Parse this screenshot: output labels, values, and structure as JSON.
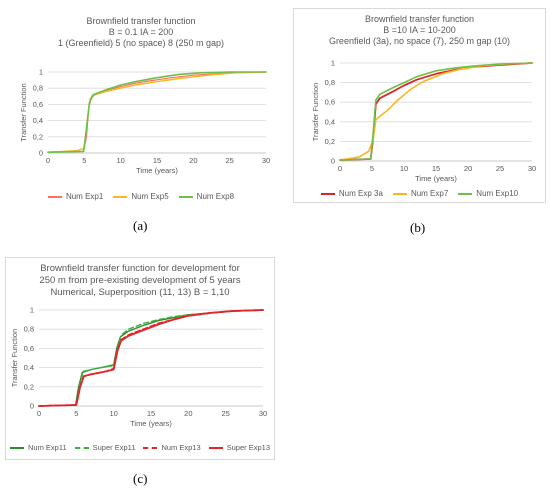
{
  "chart_data": [
    {
      "type": "line",
      "title": [
        "Brownfield transfer function",
        "B = 0.1 IA = 200",
        "1 (Greenfield) 5 (no space) 8 (250 m gap)"
      ],
      "xlabel": "Time (years)",
      "ylabel": "Transfer Function",
      "xlim": [
        0,
        30
      ],
      "ylim": [
        0,
        1
      ],
      "xticks": [
        0,
        5,
        10,
        15,
        20,
        25,
        30
      ],
      "yticks": [
        0,
        0.2,
        0.4,
        0.6,
        0.8,
        1
      ],
      "ytick_labels": [
        "0",
        "0,2",
        "0,4",
        "0,6",
        "0,8",
        "1"
      ],
      "grid": "horizontal",
      "legend_position": "bottom",
      "caption": "(a)",
      "series": [
        {
          "name": "Num Exp1",
          "color": "#ff6f61",
          "width": 1.2,
          "dash": "",
          "points": [
            [
              0,
              0.01
            ],
            [
              4.9,
              0.02
            ],
            [
              5.3,
              0.2
            ],
            [
              5.6,
              0.55
            ],
            [
              6,
              0.7
            ],
            [
              7,
              0.74
            ],
            [
              8,
              0.77
            ],
            [
              10,
              0.82
            ],
            [
              12,
              0.86
            ],
            [
              14,
              0.89
            ],
            [
              17,
              0.93
            ],
            [
              20,
              0.96
            ],
            [
              25,
              0.99
            ],
            [
              30,
              1
            ]
          ]
        },
        {
          "name": "Num Exp5",
          "color": "#fcb520",
          "width": 1.4,
          "dash": "",
          "points": [
            [
              0,
              0.01
            ],
            [
              2,
              0.02
            ],
            [
              4,
              0.03
            ],
            [
              5,
              0.06
            ],
            [
              5.4,
              0.4
            ],
            [
              5.8,
              0.67
            ],
            [
              6.5,
              0.72
            ],
            [
              8,
              0.76
            ],
            [
              10,
              0.8
            ],
            [
              12,
              0.84
            ],
            [
              15,
              0.88
            ],
            [
              18,
              0.92
            ],
            [
              22,
              0.96
            ],
            [
              26,
              0.99
            ],
            [
              30,
              1
            ]
          ]
        },
        {
          "name": "Num Exp8",
          "color": "#6cc04a",
          "width": 1.6,
          "dash": "",
          "points": [
            [
              0,
              0.01
            ],
            [
              4.9,
              0.02
            ],
            [
              5.3,
              0.3
            ],
            [
              5.7,
              0.62
            ],
            [
              6.2,
              0.72
            ],
            [
              8,
              0.78
            ],
            [
              10,
              0.84
            ],
            [
              12,
              0.88
            ],
            [
              15,
              0.93
            ],
            [
              18,
              0.97
            ],
            [
              21,
              0.99
            ],
            [
              25,
              1
            ],
            [
              30,
              1
            ]
          ]
        }
      ]
    },
    {
      "type": "line",
      "title": [
        "Brownfield transfer function",
        "B =10 IA = 10-200",
        "Greenfield (3a), no space (7), 250 m gap (10)"
      ],
      "xlabel": "Time (years)",
      "ylabel": "Transfer Function",
      "xlim": [
        0,
        30
      ],
      "ylim": [
        0,
        1
      ],
      "xticks": [
        0,
        5,
        10,
        15,
        20,
        25,
        30
      ],
      "yticks": [
        0,
        0.2,
        0.4,
        0.6,
        0.8,
        1
      ],
      "ytick_labels": [
        "0",
        "0,2",
        "0,4",
        "0,6",
        "0,8",
        "1"
      ],
      "grid": "horizontal",
      "legend_position": "bottom",
      "caption": "(b)",
      "series": [
        {
          "name": "Num Exp 3a",
          "color": "#d9262b",
          "width": 1.8,
          "dash": "",
          "points": [
            [
              0,
              0.01
            ],
            [
              4.8,
              0.02
            ],
            [
              5.2,
              0.25
            ],
            [
              5.6,
              0.58
            ],
            [
              6.2,
              0.64
            ],
            [
              8,
              0.7
            ],
            [
              10,
              0.77
            ],
            [
              12,
              0.83
            ],
            [
              15,
              0.89
            ],
            [
              18,
              0.93
            ],
            [
              21,
              0.96
            ],
            [
              25,
              0.98
            ],
            [
              30,
              1
            ]
          ]
        },
        {
          "name": "Num Exp7",
          "color": "#fcb520",
          "width": 1.6,
          "dash": "",
          "points": [
            [
              0,
              0.01
            ],
            [
              3,
              0.04
            ],
            [
              4.5,
              0.1
            ],
            [
              5.2,
              0.22
            ],
            [
              5.6,
              0.42
            ],
            [
              6.5,
              0.47
            ],
            [
              7.5,
              0.52
            ],
            [
              9,
              0.62
            ],
            [
              11,
              0.73
            ],
            [
              13,
              0.81
            ],
            [
              16,
              0.89
            ],
            [
              19,
              0.94
            ],
            [
              22,
              0.97
            ],
            [
              26,
              0.99
            ],
            [
              30,
              1
            ]
          ]
        },
        {
          "name": "Num Exp10",
          "color": "#6cc04a",
          "width": 1.6,
          "dash": "",
          "points": [
            [
              0,
              0.01
            ],
            [
              4.8,
              0.02
            ],
            [
              5.2,
              0.3
            ],
            [
              5.6,
              0.62
            ],
            [
              6.2,
              0.68
            ],
            [
              8,
              0.74
            ],
            [
              10,
              0.8
            ],
            [
              12,
              0.86
            ],
            [
              15,
              0.92
            ],
            [
              18,
              0.95
            ],
            [
              21,
              0.97
            ],
            [
              25,
              0.99
            ],
            [
              30,
              1
            ]
          ]
        }
      ]
    },
    {
      "type": "line",
      "title": [
        "Brownfield transfer function for development for",
        "250 m from pre-existing  development of 5 years",
        "Numerical, Superposition (11, 13) B = 1,10"
      ],
      "xlabel": "Time (years)",
      "ylabel": "Transfer Function",
      "xlim": [
        0,
        30
      ],
      "ylim": [
        0,
        1
      ],
      "xticks": [
        0,
        5,
        10,
        15,
        20,
        25,
        30
      ],
      "yticks": [
        0,
        0.2,
        0.4,
        0.6,
        0.8,
        1
      ],
      "ytick_labels": [
        "0",
        "0,2",
        "0,4",
        "0,6",
        "0,8",
        "1"
      ],
      "grid": "horizontal",
      "legend_position": "bottom",
      "caption": "(c)",
      "series": [
        {
          "name": "Num Exp11",
          "color": "#2e8b2e",
          "width": 1.4,
          "dash": "",
          "points": [
            [
              0,
              0
            ],
            [
              4.9,
              0.01
            ],
            [
              5.3,
              0.2
            ],
            [
              5.8,
              0.35
            ],
            [
              7,
              0.38
            ],
            [
              9,
              0.41
            ],
            [
              10,
              0.43
            ],
            [
              10.4,
              0.6
            ],
            [
              10.9,
              0.72
            ],
            [
              12,
              0.78
            ],
            [
              14,
              0.84
            ],
            [
              16,
              0.89
            ],
            [
              18,
              0.92
            ],
            [
              20,
              0.95
            ],
            [
              23,
              0.97
            ],
            [
              26,
              0.99
            ],
            [
              30,
              1
            ]
          ]
        },
        {
          "name": "Super Exp11",
          "color": "#3fae3f",
          "width": 1.4,
          "dash": "5,3",
          "points": [
            [
              0,
              0
            ],
            [
              5,
              0.01
            ],
            [
              5.4,
              0.2
            ],
            [
              5.9,
              0.36
            ],
            [
              7,
              0.38
            ],
            [
              9,
              0.41
            ],
            [
              10,
              0.42
            ],
            [
              10.5,
              0.6
            ],
            [
              11,
              0.74
            ],
            [
              12,
              0.8
            ],
            [
              14,
              0.86
            ],
            [
              16,
              0.9
            ],
            [
              18,
              0.93
            ],
            [
              20,
              0.95
            ],
            [
              23,
              0.97
            ],
            [
              26,
              0.99
            ],
            [
              30,
              1
            ]
          ]
        },
        {
          "name": "Num Exp13",
          "color": "#e0262b",
          "width": 1.8,
          "dash": "5,3",
          "points": [
            [
              0,
              0
            ],
            [
              5,
              0.01
            ],
            [
              5.5,
              0.2
            ],
            [
              6,
              0.31
            ],
            [
              7,
              0.33
            ],
            [
              9,
              0.36
            ],
            [
              10,
              0.39
            ],
            [
              10.5,
              0.58
            ],
            [
              11,
              0.69
            ],
            [
              12,
              0.74
            ],
            [
              14,
              0.8
            ],
            [
              16,
              0.86
            ],
            [
              18,
              0.9
            ],
            [
              20,
              0.94
            ],
            [
              23,
              0.97
            ],
            [
              26,
              0.99
            ],
            [
              30,
              1
            ]
          ]
        },
        {
          "name": "Super Exp13",
          "color": "#e0262b",
          "width": 1.8,
          "dash": "",
          "points": [
            [
              0,
              0
            ],
            [
              5,
              0.01
            ],
            [
              5.5,
              0.2
            ],
            [
              6,
              0.31
            ],
            [
              7,
              0.33
            ],
            [
              9,
              0.36
            ],
            [
              10,
              0.38
            ],
            [
              10.5,
              0.57
            ],
            [
              11,
              0.68
            ],
            [
              12,
              0.73
            ],
            [
              14,
              0.79
            ],
            [
              16,
              0.85
            ],
            [
              18,
              0.9
            ],
            [
              20,
              0.94
            ],
            [
              23,
              0.97
            ],
            [
              26,
              0.99
            ],
            [
              30,
              1
            ]
          ]
        }
      ]
    }
  ]
}
